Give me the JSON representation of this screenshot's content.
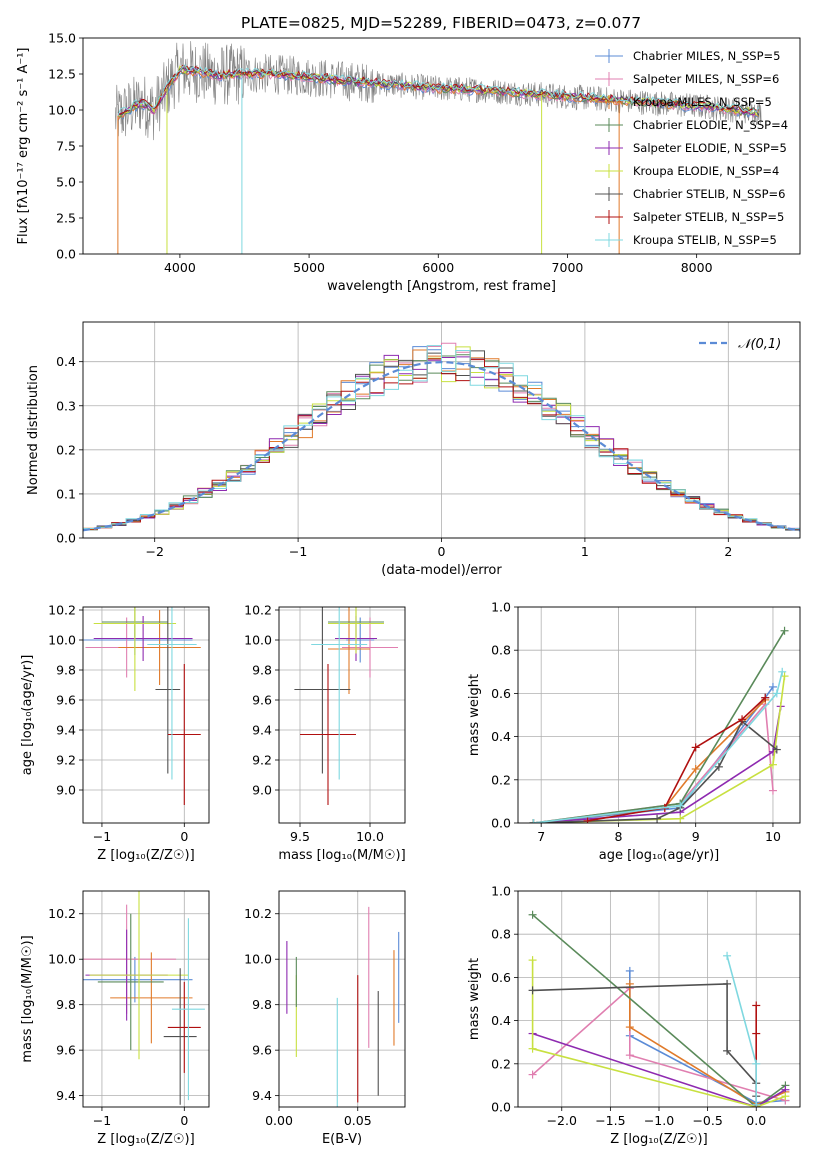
{
  "title": "PLATE=0825, MJD=52289, FIBERID=0473, z=0.077",
  "colors": {
    "chabrier_miles": "#5b8bd6",
    "salpeter_miles": "#e07fb0",
    "kroupa_miles": "#e07a2a",
    "chabrier_elodie": "#5a8a5a",
    "salpeter_elodie": "#8e2ab0",
    "kroupa_elodie": "#c8e040",
    "chabrier_stelib": "#505050",
    "salpeter_stelib": "#b01010",
    "kroupa_stelib": "#7fd8e0",
    "data": "#808080"
  },
  "chart_data": [
    {
      "id": "spectrum",
      "type": "line",
      "xlabel": "wavelength [Angstrom, rest frame]",
      "ylabel": "Flux [fλ10⁻¹⁷ erg cm⁻² s⁻¹ A⁻¹]",
      "xlim": [
        3250,
        8800
      ],
      "ylim": [
        0,
        15
      ],
      "xticks": [
        4000,
        5000,
        6000,
        7000,
        8000
      ],
      "yticks": [
        0.0,
        2.5,
        5.0,
        7.5,
        10.0,
        12.5,
        15.0
      ],
      "legend_position": "top-right",
      "legend": [
        "Chabrier MILES, N_SSP=5",
        "Salpeter MILES, N_SSP=6",
        "Kroupa MILES, N_SSP=5",
        "Chabrier ELODIE, N_SSP=4",
        "Salpeter ELODIE, N_SSP=5",
        "Kroupa ELODIE, N_SSP=4",
        "Chabrier STELIB, N_SSP=6",
        "Salpeter STELIB, N_SSP=5",
        "Kroupa STELIB, N_SSP=5"
      ],
      "continuum": {
        "x": [
          3500,
          3600,
          3700,
          3800,
          3900,
          4000,
          4100,
          4300,
          4500,
          4700,
          5000,
          5300,
          5600,
          6000,
          6300,
          6600,
          6900,
          7200,
          7500,
          7800,
          8100,
          8400,
          8500
        ],
        "y": [
          9.5,
          10.0,
          10.5,
          10.0,
          11.5,
          12.8,
          12.7,
          12.4,
          12.5,
          12.5,
          12.3,
          12.0,
          11.8,
          11.5,
          11.4,
          11.2,
          11.0,
          10.8,
          10.6,
          10.4,
          10.2,
          9.9,
          9.8
        ]
      }
    },
    {
      "id": "residuals",
      "type": "histogram",
      "xlabel": "(data-model)/error",
      "ylabel": "Normed distribution",
      "xlim": [
        -2.5,
        2.5
      ],
      "ylim": [
        0,
        0.49
      ],
      "xticks": [
        -2,
        -1,
        0,
        1,
        2
      ],
      "yticks": [
        0.0,
        0.1,
        0.2,
        0.3,
        0.4
      ],
      "legend": [
        "𝒩(0,1)"
      ],
      "legend_position": "top-right",
      "grid": true
    },
    {
      "id": "age_vs_z",
      "type": "errorbar",
      "xlabel": "Z [log₁₀(Z/Z☉)]",
      "ylabel": "age  [log₁₀(age/yr)]",
      "xlim": [
        -1.23,
        0.3
      ],
      "ylim": [
        8.78,
        10.22
      ],
      "xticks": [
        -1,
        0
      ],
      "yticks": [
        9.0,
        9.2,
        9.4,
        9.6,
        9.8,
        10.0,
        10.2
      ],
      "points": [
        {
          "model": "chabrier_miles",
          "x": -0.6,
          "y": 10.0,
          "xerr": 0.7,
          "yerr": 0.1
        },
        {
          "model": "salpeter_miles",
          "x": -0.7,
          "y": 9.95,
          "xerr": 0.5,
          "yerr": 0.2
        },
        {
          "model": "kroupa_miles",
          "x": -0.3,
          "y": 9.95,
          "xerr": 0.5,
          "yerr": 0.25
        },
        {
          "model": "chabrier_elodie",
          "x": -0.6,
          "y": 10.12,
          "xerr": 0.4,
          "yerr": 0.1
        },
        {
          "model": "salpeter_elodie",
          "x": -0.5,
          "y": 10.01,
          "xerr": 0.6,
          "yerr": 0.15
        },
        {
          "model": "kroupa_elodie",
          "x": -0.6,
          "y": 10.11,
          "xerr": 0.5,
          "yerr": 0.45
        },
        {
          "model": "chabrier_stelib",
          "x": -0.2,
          "y": 9.67,
          "xerr": 0.15,
          "yerr": 0.56
        },
        {
          "model": "salpeter_stelib",
          "x": 0.0,
          "y": 9.37,
          "xerr": 0.2,
          "yerr": 0.47
        },
        {
          "model": "kroupa_stelib",
          "x": -0.15,
          "y": 9.97,
          "xerr": 0.3,
          "yerr": 0.9
        }
      ]
    },
    {
      "id": "age_vs_mass",
      "type": "errorbar",
      "xlabel": "mass [log₁₀(M/M☉)]",
      "ylabel": "",
      "xlim": [
        9.35,
        10.25
      ],
      "ylim": [
        8.78,
        10.22
      ],
      "xticks": [
        9.5,
        10.0
      ],
      "yticks": [
        9.0,
        9.2,
        9.4,
        9.6,
        9.8,
        10.0,
        10.2
      ],
      "points": [
        {
          "model": "chabrier_miles",
          "x": 9.93,
          "y": 10.0,
          "xerr": 0.1,
          "yerr": 0.15
        },
        {
          "model": "salpeter_miles",
          "x": 10.0,
          "y": 9.95,
          "xerr": 0.2,
          "yerr": 0.2
        },
        {
          "model": "kroupa_miles",
          "x": 9.85,
          "y": 9.94,
          "xerr": 0.15,
          "yerr": 0.3
        },
        {
          "model": "chabrier_elodie",
          "x": 9.9,
          "y": 10.12,
          "xerr": 0.2,
          "yerr": 0.1
        },
        {
          "model": "salpeter_elodie",
          "x": 9.9,
          "y": 10.01,
          "xerr": 0.15,
          "yerr": 0.15
        },
        {
          "model": "kroupa_elodie",
          "x": 9.9,
          "y": 10.11,
          "xerr": 0.2,
          "yerr": 0.2
        },
        {
          "model": "chabrier_stelib",
          "x": 9.66,
          "y": 9.67,
          "xerr": 0.2,
          "yerr": 0.56
        },
        {
          "model": "salpeter_stelib",
          "x": 9.7,
          "y": 9.37,
          "xerr": 0.2,
          "yerr": 0.47
        },
        {
          "model": "kroupa_stelib",
          "x": 9.78,
          "y": 9.97,
          "xerr": 0.2,
          "yerr": 0.9
        }
      ]
    },
    {
      "id": "weight_vs_age",
      "type": "line",
      "xlabel": "age  [log₁₀(age/yr)]",
      "ylabel": "mass weight",
      "xlim": [
        6.7,
        10.35
      ],
      "ylim": [
        0,
        1.0
      ],
      "xticks": [
        7,
        8,
        9,
        10
      ],
      "yticks": [
        0.0,
        0.2,
        0.4,
        0.6,
        0.8,
        1.0
      ],
      "grid": true,
      "series": [
        {
          "model": "chabrier_miles",
          "x": [
            6.9,
            8.8,
            9.9,
            10.0
          ],
          "y": [
            0.0,
            0.07,
            0.58,
            0.63
          ]
        },
        {
          "model": "salpeter_miles",
          "x": [
            6.9,
            8.8,
            9.9,
            10.0
          ],
          "y": [
            0.0,
            0.09,
            0.55,
            0.15
          ]
        },
        {
          "model": "kroupa_miles",
          "x": [
            6.9,
            8.6,
            9.0,
            9.9
          ],
          "y": [
            0.0,
            0.07,
            0.25,
            0.57
          ]
        },
        {
          "model": "chabrier_elodie",
          "x": [
            6.9,
            8.8,
            10.15
          ],
          "y": [
            0.0,
            0.09,
            0.89
          ]
        },
        {
          "model": "salpeter_elodie",
          "x": [
            6.9,
            8.8,
            10.0,
            10.1
          ],
          "y": [
            0.0,
            0.05,
            0.33,
            0.54
          ]
        },
        {
          "model": "kroupa_elodie",
          "x": [
            6.9,
            8.8,
            10.0,
            10.15
          ],
          "y": [
            0.0,
            0.02,
            0.27,
            0.68
          ]
        },
        {
          "model": "chabrier_stelib",
          "x": [
            6.9,
            8.5,
            8.8,
            9.3,
            9.6,
            10.05
          ],
          "y": [
            0.0,
            0.02,
            0.07,
            0.26,
            0.47,
            0.34
          ]
        },
        {
          "model": "salpeter_stelib",
          "x": [
            7.6,
            8.6,
            9.0,
            9.6,
            9.9
          ],
          "y": [
            0.01,
            0.07,
            0.35,
            0.48,
            0.58
          ]
        },
        {
          "model": "kroupa_stelib",
          "x": [
            6.9,
            8.8,
            10.05,
            10.12
          ],
          "y": [
            0.0,
            0.08,
            0.6,
            0.7
          ]
        }
      ]
    },
    {
      "id": "mass_vs_z",
      "type": "errorbar",
      "xlabel": "Z [log₁₀(Z/Z☉)]",
      "ylabel": "mass [log₁₀(M/M☉)]",
      "xlim": [
        -1.23,
        0.3
      ],
      "ylim": [
        9.35,
        10.3
      ],
      "xticks": [
        -1,
        0
      ],
      "yticks": [
        9.4,
        9.6,
        9.8,
        10.0,
        10.2
      ],
      "points": [
        {
          "model": "chabrier_miles",
          "x": -0.6,
          "y": 9.91,
          "xerr": 0.7,
          "yerr": 0.1
        },
        {
          "model": "salpeter_miles",
          "x": -0.7,
          "y": 10.0,
          "xerr": 0.6,
          "yerr": 0.24
        },
        {
          "model": "kroupa_miles",
          "x": -0.4,
          "y": 9.83,
          "xerr": 0.5,
          "yerr": 0.2
        },
        {
          "model": "chabrier_elodie",
          "x": -0.65,
          "y": 9.9,
          "xerr": 0.4,
          "yerr": 0.3
        },
        {
          "model": "salpeter_elodie",
          "x": -0.7,
          "y": 9.93,
          "xerr": 0.5,
          "yerr": 0.2
        },
        {
          "model": "kroupa_elodie",
          "x": -0.55,
          "y": 9.93,
          "xerr": 0.6,
          "yerr": 0.37
        },
        {
          "model": "chabrier_stelib",
          "x": -0.05,
          "y": 9.66,
          "xerr": 0.2,
          "yerr": 0.3
        },
        {
          "model": "salpeter_stelib",
          "x": 0.0,
          "y": 9.7,
          "xerr": 0.2,
          "yerr": 0.2
        },
        {
          "model": "kroupa_stelib",
          "x": 0.05,
          "y": 9.78,
          "xerr": 0.2,
          "yerr": 0.4
        }
      ]
    },
    {
      "id": "mass_vs_ebv",
      "type": "errorbar",
      "xlabel": "E(B-V)",
      "ylabel": "",
      "xlim": [
        0.0,
        0.08
      ],
      "ylim": [
        9.35,
        10.3
      ],
      "xticks": [
        0.0,
        0.05
      ],
      "yticks": [
        9.4,
        9.6,
        9.8,
        10.0,
        10.2
      ],
      "points": [
        {
          "model": "salpeter_elodie",
          "x": 0.005,
          "y": 9.92,
          "xerr": 0,
          "yerr": 0.16
        },
        {
          "model": "kroupa_elodie",
          "x": 0.011,
          "y": 9.75,
          "xerr": 0,
          "yerr": 0.18
        },
        {
          "model": "chabrier_elodie",
          "x": 0.011,
          "y": 9.9,
          "xerr": 0,
          "yerr": 0.11
        },
        {
          "model": "kroupa_stelib",
          "x": 0.037,
          "y": 9.55,
          "xerr": 0,
          "yerr": 0.28
        },
        {
          "model": "salpeter_stelib",
          "x": 0.05,
          "y": 9.65,
          "xerr": 0,
          "yerr": 0.28
        },
        {
          "model": "salpeter_miles",
          "x": 0.057,
          "y": 9.92,
          "xerr": 0,
          "yerr": 0.31
        },
        {
          "model": "chabrier_stelib",
          "x": 0.063,
          "y": 9.63,
          "xerr": 0,
          "yerr": 0.23
        },
        {
          "model": "kroupa_miles",
          "x": 0.073,
          "y": 9.83,
          "xerr": 0,
          "yerr": 0.21
        },
        {
          "model": "chabrier_miles",
          "x": 0.076,
          "y": 9.92,
          "xerr": 0,
          "yerr": 0.2
        }
      ]
    },
    {
      "id": "weight_vs_z",
      "type": "line",
      "xlabel": "Z [log₁₀(Z/Z☉)]",
      "ylabel": "mass weight",
      "xlim": [
        -2.45,
        0.45
      ],
      "ylim": [
        0,
        1.0
      ],
      "xticks": [
        -2.0,
        -1.5,
        -1.0,
        -0.5,
        0.0
      ],
      "yticks": [
        0.0,
        0.2,
        0.4,
        0.6,
        0.8,
        1.0
      ],
      "grid": true,
      "series": [
        {
          "model": "chabrier_miles",
          "x": [
            -1.3,
            -1.3,
            0.0,
            0.3
          ],
          "y": [
            0.63,
            0.33,
            0.02,
            0.03
          ]
        },
        {
          "model": "salpeter_miles",
          "x": [
            -2.3,
            -1.3,
            -1.3,
            0.3
          ],
          "y": [
            0.15,
            0.55,
            0.24,
            0.03
          ]
        },
        {
          "model": "kroupa_miles",
          "x": [
            -1.3,
            -1.3,
            0.0,
            0.3
          ],
          "y": [
            0.57,
            0.37,
            0.01,
            0.07
          ]
        },
        {
          "model": "chabrier_elodie",
          "x": [
            -2.3,
            0.0,
            0.3
          ],
          "y": [
            0.89,
            0.0,
            0.1
          ]
        },
        {
          "model": "salpeter_elodie",
          "x": [
            -2.3,
            0.0,
            0.3
          ],
          "y": [
            0.34,
            0.0,
            0.08
          ]
        },
        {
          "model": "kroupa_elodie",
          "x": [
            -2.3,
            -2.3,
            0.0,
            0.3
          ],
          "y": [
            0.68,
            0.27,
            0.0,
            0.05
          ]
        },
        {
          "model": "chabrier_stelib",
          "x": [
            -2.3,
            -0.3,
            -0.3,
            0.0,
            0.0
          ],
          "y": [
            0.54,
            0.57,
            0.26,
            0.11,
            0.05
          ]
        },
        {
          "model": "salpeter_stelib",
          "x": [
            0.0,
            0.0,
            0.0
          ],
          "y": [
            0.47,
            0.34,
            0.0
          ]
        },
        {
          "model": "kroupa_stelib",
          "x": [
            -0.3,
            0.0,
            0.0
          ],
          "y": [
            0.7,
            0.2,
            0.01
          ]
        }
      ]
    }
  ]
}
